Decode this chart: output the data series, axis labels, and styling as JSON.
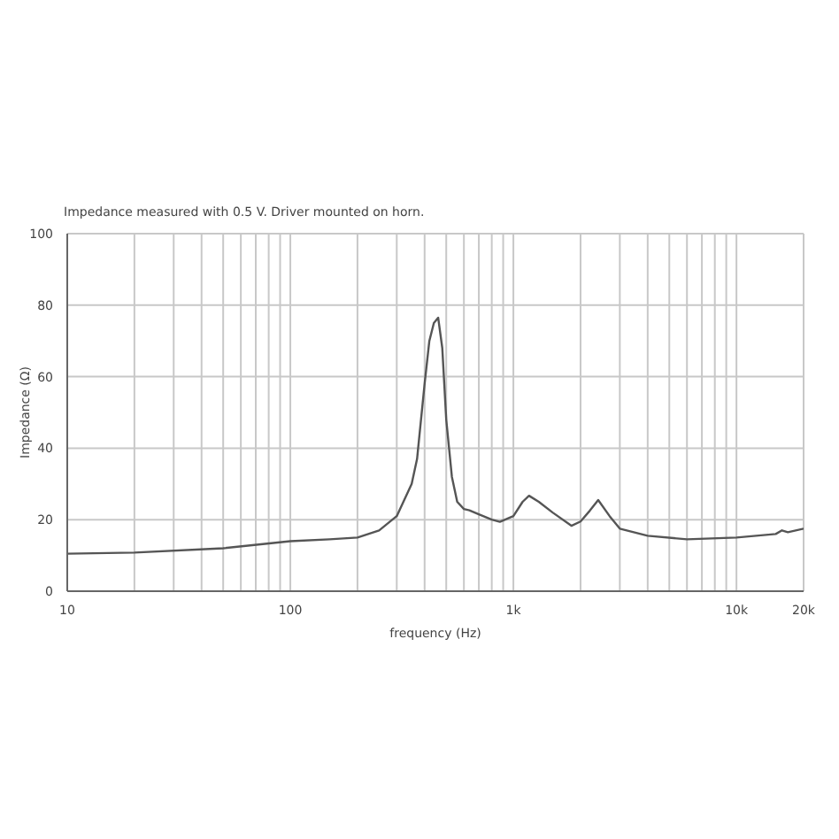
{
  "chart_data": {
    "type": "line",
    "title": "Impedance measured with 0.5 V. Driver mounted on horn.",
    "xlabel": "frequency (Hz)",
    "ylabel": "Impedance (Ω)",
    "log": "x",
    "grid": true,
    "marker": "none",
    "line_style": "solid",
    "xlim": [
      10,
      20000
    ],
    "ylim": [
      0,
      100
    ],
    "xticks": [
      {
        "value": 10,
        "label": "10"
      },
      {
        "value": 20,
        "label": null
      },
      {
        "value": 30,
        "label": null
      },
      {
        "value": 40,
        "label": null
      },
      {
        "value": 50,
        "label": null
      },
      {
        "value": 60,
        "label": null
      },
      {
        "value": 70,
        "label": null
      },
      {
        "value": 80,
        "label": null
      },
      {
        "value": 90,
        "label": null
      },
      {
        "value": 100,
        "label": "100"
      },
      {
        "value": 200,
        "label": null
      },
      {
        "value": 300,
        "label": null
      },
      {
        "value": 400,
        "label": null
      },
      {
        "value": 500,
        "label": null
      },
      {
        "value": 600,
        "label": null
      },
      {
        "value": 700,
        "label": null
      },
      {
        "value": 800,
        "label": null
      },
      {
        "value": 900,
        "label": null
      },
      {
        "value": 1000,
        "label": "1k"
      },
      {
        "value": 2000,
        "label": null
      },
      {
        "value": 3000,
        "label": null
      },
      {
        "value": 4000,
        "label": null
      },
      {
        "value": 5000,
        "label": null
      },
      {
        "value": 6000,
        "label": null
      },
      {
        "value": 7000,
        "label": null
      },
      {
        "value": 8000,
        "label": null
      },
      {
        "value": 9000,
        "label": null
      },
      {
        "value": 10000,
        "label": "10k"
      },
      {
        "value": 20000,
        "label": "20k"
      }
    ],
    "yticks": [
      0,
      20,
      40,
      60,
      80,
      100
    ],
    "series": [
      {
        "color": "#555555",
        "x": [
          10,
          20,
          50,
          100,
          150,
          200,
          250,
          300,
          350,
          370,
          400,
          420,
          440,
          460,
          480,
          500,
          530,
          560,
          600,
          635,
          700,
          800,
          870,
          1000,
          1100,
          1175,
          1300,
          1500,
          1820,
          2000,
          2200,
          2400,
          2700,
          3000,
          4000,
          6000,
          10000,
          15000,
          16000,
          17000,
          20000
        ],
        "values": [
          10.5,
          10.8,
          12,
          14,
          14.5,
          15,
          17,
          21,
          30,
          37,
          58,
          70,
          75,
          76.5,
          68,
          48,
          32,
          25,
          23,
          22.6,
          21.5,
          20,
          19.4,
          21,
          25,
          26.7,
          25,
          22,
          18.3,
          19.5,
          22.5,
          25.5,
          21,
          17.5,
          15.5,
          14.5,
          15,
          16,
          17,
          16.5,
          17.5
        ]
      }
    ]
  }
}
